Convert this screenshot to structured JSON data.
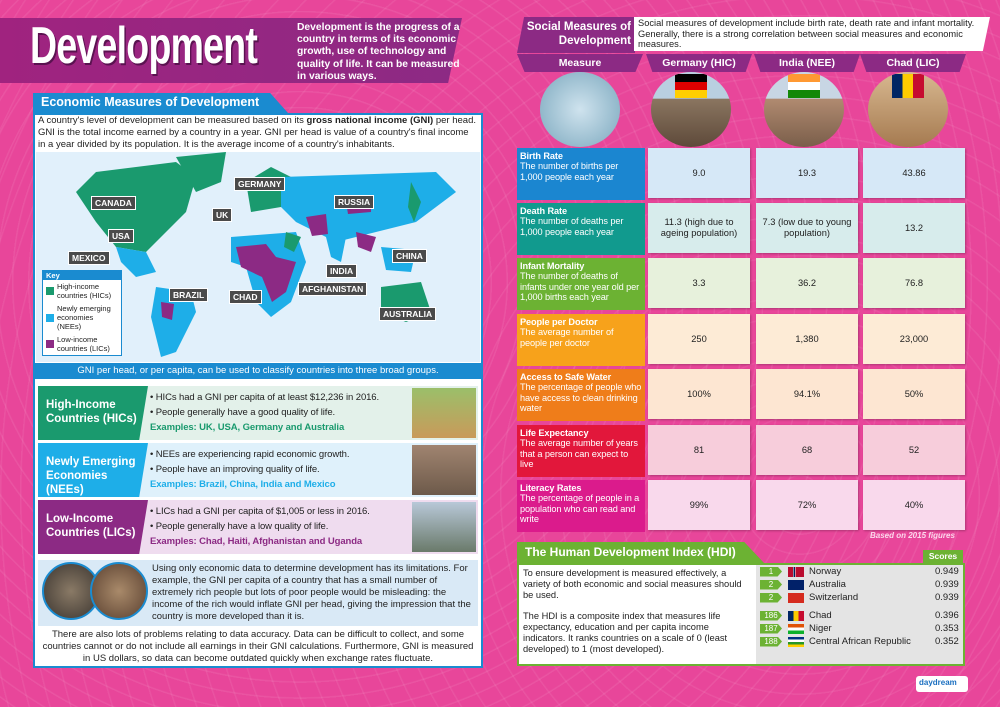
{
  "header": {
    "title": "Development",
    "intro": "Development is the progress of a country in terms of its economic growth, use of technology and quality of life. It can be measured in various ways."
  },
  "economic": {
    "heading": "Economic Measures of Development",
    "intro_pre": "A country's level of development can be measured based on its ",
    "intro_bold": "gross national income (GNI)",
    "intro_post": " per head. GNI is the total income earned by a country in a year. GNI per head is value of a country's final income in a year divided by its population. It is the average income of a country's inhabitants.",
    "map_labels": [
      "CANADA",
      "USA",
      "MEXICO",
      "BRAZIL",
      "UK",
      "GERMANY",
      "RUSSIA",
      "CHINA",
      "INDIA",
      "AFGHANISTAN",
      "CHAD",
      "AUSTRALIA"
    ],
    "key": {
      "title": "Key",
      "items": [
        {
          "label": "High-income countries (HICs)",
          "color": "#1a9a6e"
        },
        {
          "label": "Newly emerging economies (NEEs)",
          "color": "#1eaee8"
        },
        {
          "label": "Low-income countries (LICs)",
          "color": "#8c2a84"
        }
      ]
    },
    "gni_note": "GNI per head, or per capita, can be used to classify countries into three broad groups.",
    "groups": [
      {
        "name": "High-Income Countries (HICs)",
        "bullets": [
          "HICs had a GNI per capita of at least $12,236 in 2016.",
          "People generally have a good quality of life."
        ],
        "examples": "Examples: UK, USA, Germany and Australia",
        "color": "#1a9a6e",
        "bg": "#e3f1ea"
      },
      {
        "name": "Newly Emerging Economies (NEEs)",
        "bullets": [
          "NEEs are experiencing rapid economic growth.",
          "People have an improving quality of life."
        ],
        "examples": "Examples: Brazil, China, India and Mexico",
        "color": "#1eaee8",
        "bg": "#dff1fb"
      },
      {
        "name": "Low-Income Countries (LICs)",
        "bullets": [
          "LICs had a GNI per capita of $1,005 or less in 2016.",
          "People generally have a low quality of life."
        ],
        "examples": "Examples: Chad, Haiti, Afghanistan and Uganda",
        "color": "#8c2a84",
        "bg": "#efdcef"
      }
    ],
    "limitations": "Using only economic data to determine development has its limitations. For example, the GNI per capita of a country that has a small number of extremely rich people but lots of poor people would be misleading: the income of the rich would inflate GNI per head, giving the impression that the country is more developed than it is.",
    "accuracy": "There are also lots of problems relating to data accuracy. Data can be difficult to collect, and some countries cannot or do not include all earnings in their GNI calculations. Furthermore, GNI is measured in US dollars, so data can become outdated quickly when exchange rates fluctuate."
  },
  "social": {
    "heading": "Social Measures of Development",
    "description": "Social measures of development include birth rate, death rate and infant mortality. Generally, there is a strong correlation between social measures and economic measures.",
    "columns": [
      "Measure",
      "Germany (HIC)",
      "India (NEE)",
      "Chad (LIC)"
    ],
    "rows": [
      {
        "title": "Birth Rate",
        "desc": "The number of births per 1,000 people each year",
        "values": [
          "9.0",
          "19.3",
          "43.86"
        ],
        "color": "#1b86d0",
        "bg": "#d6e8f7"
      },
      {
        "title": "Death Rate",
        "desc": "The number of deaths per 1,000 people each year",
        "values": [
          "11.3 (high due to ageing population)",
          "7.3 (low due to young population)",
          "13.2"
        ],
        "color": "#119a8e",
        "bg": "#d7ecec"
      },
      {
        "title": "Infant Mortality",
        "desc": "The number of deaths of infants under one year old per 1,000 births each year",
        "values": [
          "3.3",
          "36.2",
          "76.8"
        ],
        "color": "#6cb233",
        "bg": "#e7f1dc"
      },
      {
        "title": "People per Doctor",
        "desc": "The average number of people per doctor",
        "values": [
          "250",
          "1,380",
          "23,000"
        ],
        "color": "#f7a21b",
        "bg": "#fdebd6"
      },
      {
        "title": "Access to Safe Water",
        "desc": "The percentage of people who have access to clean drinking water",
        "values": [
          "100%",
          "94.1%",
          "50%"
        ],
        "color": "#ef7d1a",
        "bg": "#fde6d2"
      },
      {
        "title": "Life Expectancy",
        "desc": "The average number of years that a person can expect to live",
        "values": [
          "81",
          "68",
          "52"
        ],
        "color": "#e2173b",
        "bg": "#f7cddb"
      },
      {
        "title": "Literacy Rates",
        "desc": "The percentage of people in a population who can read and write",
        "values": [
          "99%",
          "72%",
          "40%"
        ],
        "color": "#db1b8c",
        "bg": "#f9d9ec"
      }
    ],
    "footnote": "Based on 2015 figures"
  },
  "hdi": {
    "heading": "The Human Development Index (HDI)",
    "para1": "To ensure development is measured effectively, a variety of both economic and social measures should be used.",
    "para2": "The HDI is a composite index that measures life expectancy, education and per capita income indicators. It ranks countries on a scale of 0 (least developed) to 1 (most developed).",
    "scores_label": "Scores",
    "rankings": [
      {
        "rank": "1",
        "country": "Norway",
        "score": "0.949"
      },
      {
        "rank": "2",
        "country": "Australia",
        "score": "0.939"
      },
      {
        "rank": "2",
        "country": "Switzerland",
        "score": "0.939"
      },
      {
        "rank": "186",
        "country": "Chad",
        "score": "0.396"
      },
      {
        "rank": "187",
        "country": "Niger",
        "score": "0.353"
      },
      {
        "rank": "188",
        "country": "Central African Republic",
        "score": "0.352"
      }
    ]
  },
  "logo": "daydream"
}
